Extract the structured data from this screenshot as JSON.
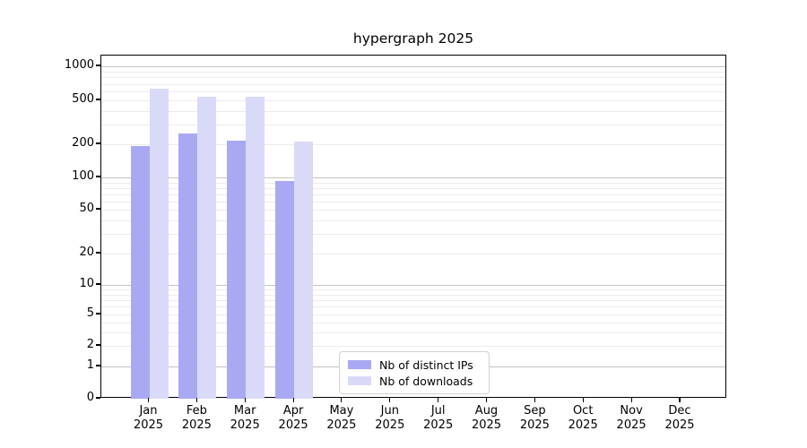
{
  "title": "hypergraph 2025",
  "colors": {
    "series_ips": "#a9a9f3",
    "series_downloads": "#d9d9f8",
    "major_grid": "#c3c3c3",
    "minor_grid": "#ebebeb",
    "axis": "#000000",
    "legend_border": "#d2d2d2",
    "background": "#ffffff"
  },
  "chart_data": {
    "type": "bar",
    "title": "hypergraph 2025",
    "xlabel": "",
    "ylabel": "",
    "year": "2025",
    "month_names": [
      "Jan",
      "Feb",
      "Mar",
      "Apr",
      "May",
      "Jun",
      "Jul",
      "Aug",
      "Sep",
      "Oct",
      "Nov",
      "Dec"
    ],
    "categories": [
      "Jan 2025",
      "Feb 2025",
      "Mar 2025",
      "Apr 2025",
      "May 2025",
      "Jun 2025",
      "Jul 2025",
      "Aug 2025",
      "Sep 2025",
      "Oct 2025",
      "Nov 2025",
      "Dec 2025"
    ],
    "series": [
      {
        "name": "Nb of distinct IPs",
        "color": "#a9a9f3",
        "values": [
          193,
          252,
          216,
          92,
          null,
          null,
          null,
          null,
          null,
          null,
          null,
          null
        ]
      },
      {
        "name": "Nb of downloads",
        "color": "#d9d9f8",
        "values": [
          640,
          535,
          535,
          213,
          null,
          null,
          null,
          null,
          null,
          null,
          null,
          null
        ]
      }
    ],
    "yscale": "symlog",
    "ytick_labels": [
      "0",
      "1",
      "2",
      "5",
      "10",
      "20",
      "50",
      "100",
      "200",
      "500",
      "1000"
    ],
    "ytick_values": [
      0,
      1,
      2,
      5,
      10,
      20,
      50,
      100,
      200,
      500,
      1000
    ],
    "major_grid_values": [
      1,
      10,
      100,
      1000
    ],
    "ylim": [
      0,
      1270
    ],
    "grid": "horizontal",
    "legend_position": "lower-center-inside"
  },
  "legend": {
    "items": [
      {
        "label": "Nb of distinct IPs",
        "color": "#a9a9f3"
      },
      {
        "label": "Nb of downloads",
        "color": "#d9d9f8"
      }
    ]
  }
}
